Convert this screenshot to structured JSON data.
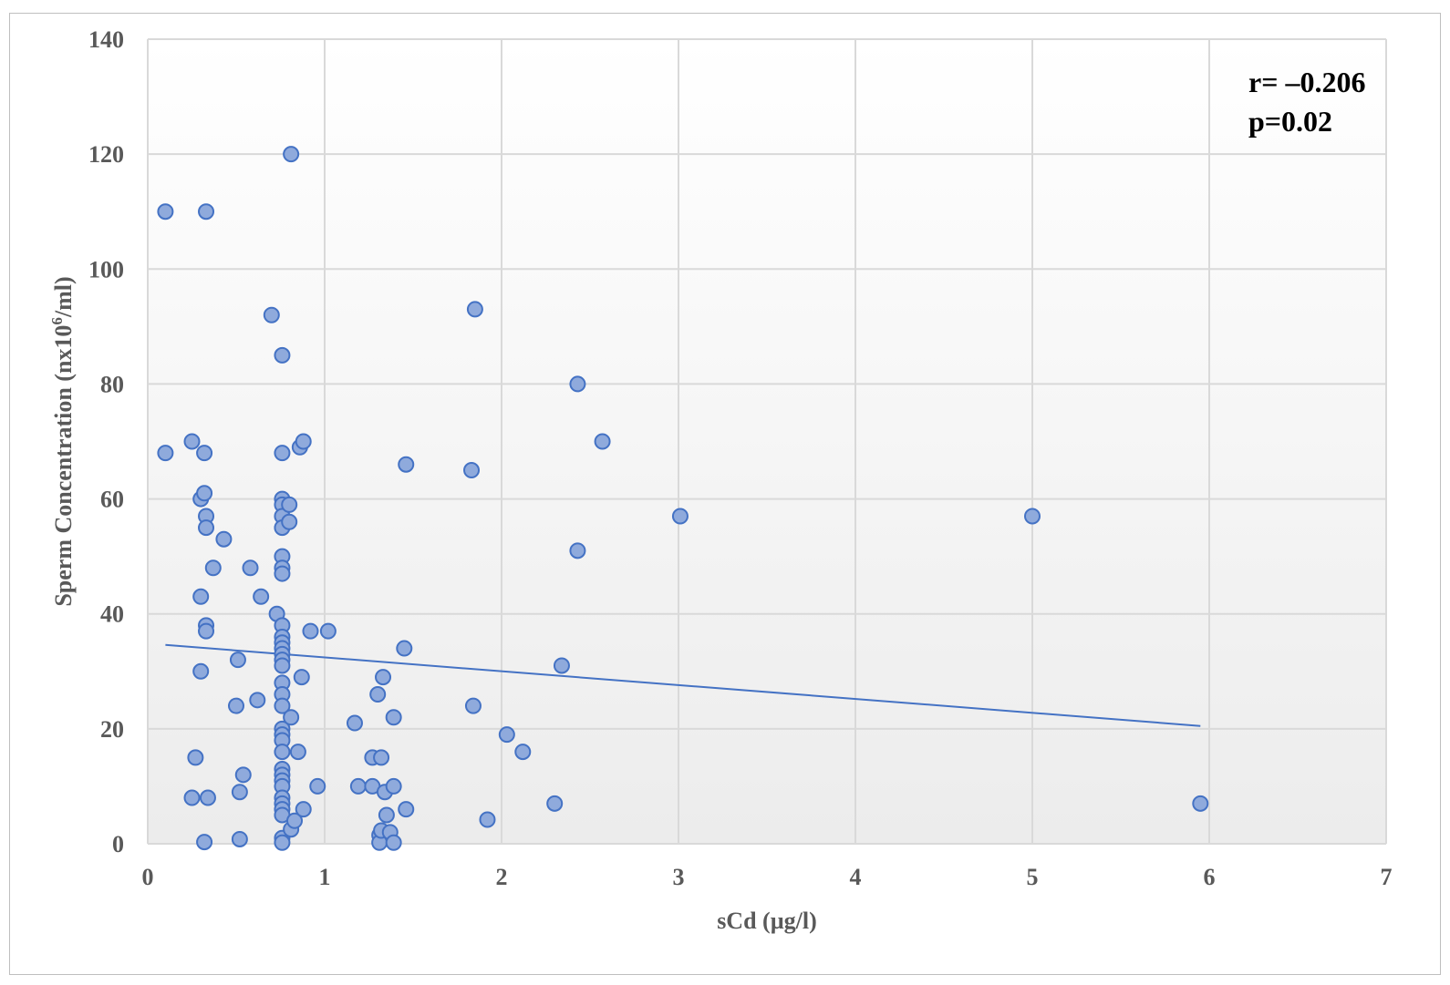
{
  "chart_data": {
    "type": "scatter",
    "title": "",
    "xlabel": "sCd (µg/l)",
    "ylabel_prefix": "Sperm Concentration (nx10",
    "ylabel_sup": "6",
    "ylabel_suffix": "/ml)",
    "xlim": [
      0,
      7
    ],
    "ylim": [
      0,
      140
    ],
    "x_ticks": [
      0,
      1,
      2,
      3,
      4,
      5,
      6,
      7
    ],
    "y_ticks": [
      0,
      20,
      40,
      60,
      80,
      100,
      120,
      140
    ],
    "grid": true,
    "annotations": [
      "r= –0.206",
      "p=0.02"
    ],
    "colors": {
      "marker_fill": "#8faadc",
      "marker_edge": "#4472c4",
      "trend": "#4472c4",
      "grid": "#d9d9d9"
    },
    "trendline": {
      "x": [
        0.1,
        5.95
      ],
      "y": [
        34.6,
        20.5
      ]
    },
    "series": [
      {
        "points": [
          [
            0.1,
            110
          ],
          [
            0.1,
            68
          ],
          [
            0.33,
            110
          ],
          [
            0.25,
            70
          ],
          [
            0.25,
            8
          ],
          [
            0.27,
            15
          ],
          [
            0.3,
            60
          ],
          [
            0.3,
            43
          ],
          [
            0.3,
            30
          ],
          [
            0.32,
            68
          ],
          [
            0.32,
            61
          ],
          [
            0.33,
            57
          ],
          [
            0.33,
            55
          ],
          [
            0.33,
            38
          ],
          [
            0.33,
            37
          ],
          [
            0.34,
            8
          ],
          [
            0.32,
            0.3
          ],
          [
            0.37,
            48
          ],
          [
            0.43,
            53
          ],
          [
            0.5,
            24
          ],
          [
            0.51,
            32
          ],
          [
            0.52,
            9
          ],
          [
            0.52,
            0.8
          ],
          [
            0.54,
            12
          ],
          [
            0.58,
            48
          ],
          [
            0.62,
            25
          ],
          [
            0.64,
            43
          ],
          [
            0.7,
            92
          ],
          [
            0.73,
            40
          ],
          [
            0.81,
            120
          ],
          [
            0.76,
            85
          ],
          [
            0.76,
            68
          ],
          [
            0.76,
            60
          ],
          [
            0.76,
            59
          ],
          [
            0.76,
            57
          ],
          [
            0.76,
            55
          ],
          [
            0.76,
            50
          ],
          [
            0.76,
            48
          ],
          [
            0.76,
            47
          ],
          [
            0.76,
            38
          ],
          [
            0.76,
            36
          ],
          [
            0.76,
            35
          ],
          [
            0.76,
            34
          ],
          [
            0.76,
            33
          ],
          [
            0.76,
            32
          ],
          [
            0.76,
            31
          ],
          [
            0.76,
            28
          ],
          [
            0.76,
            26
          ],
          [
            0.76,
            24
          ],
          [
            0.76,
            20
          ],
          [
            0.76,
            19
          ],
          [
            0.76,
            18
          ],
          [
            0.76,
            16
          ],
          [
            0.76,
            13
          ],
          [
            0.76,
            12
          ],
          [
            0.76,
            11
          ],
          [
            0.76,
            10
          ],
          [
            0.76,
            8
          ],
          [
            0.76,
            7
          ],
          [
            0.76,
            6
          ],
          [
            0.76,
            5
          ],
          [
            0.76,
            1
          ],
          [
            0.76,
            0.2
          ],
          [
            0.8,
            59
          ],
          [
            0.8,
            56
          ],
          [
            0.81,
            22
          ],
          [
            0.81,
            2.5
          ],
          [
            0.83,
            4
          ],
          [
            0.85,
            16
          ],
          [
            0.86,
            69
          ],
          [
            0.88,
            70
          ],
          [
            0.87,
            29
          ],
          [
            0.88,
            6
          ],
          [
            0.92,
            37
          ],
          [
            0.96,
            10
          ],
          [
            1.02,
            37
          ],
          [
            1.17,
            21
          ],
          [
            1.19,
            10
          ],
          [
            1.27,
            10
          ],
          [
            1.27,
            15
          ],
          [
            1.3,
            26
          ],
          [
            1.31,
            1.5
          ],
          [
            1.31,
            0.2
          ],
          [
            1.32,
            2.3
          ],
          [
            1.32,
            15
          ],
          [
            1.33,
            29
          ],
          [
            1.34,
            9
          ],
          [
            1.35,
            5
          ],
          [
            1.37,
            2
          ],
          [
            1.39,
            0.2
          ],
          [
            1.39,
            22
          ],
          [
            1.39,
            10
          ],
          [
            1.45,
            34
          ],
          [
            1.46,
            66
          ],
          [
            1.46,
            6
          ],
          [
            1.83,
            65
          ],
          [
            1.84,
            24
          ],
          [
            1.85,
            93
          ],
          [
            1.92,
            4.2
          ],
          [
            2.03,
            19
          ],
          [
            2.12,
            16
          ],
          [
            2.3,
            7
          ],
          [
            2.34,
            31
          ],
          [
            2.43,
            80
          ],
          [
            2.43,
            51
          ],
          [
            2.57,
            70
          ],
          [
            3.01,
            57
          ],
          [
            5.0,
            57
          ],
          [
            5.95,
            7
          ]
        ]
      }
    ]
  }
}
